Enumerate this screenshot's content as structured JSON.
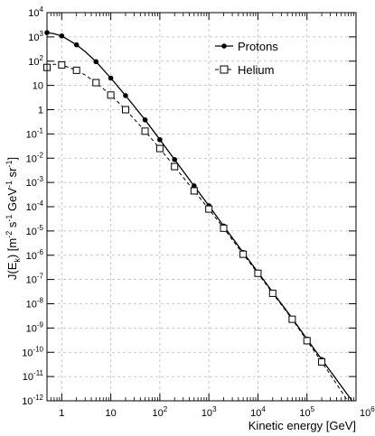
{
  "chart_data": {
    "type": "line",
    "x_scale": "log",
    "y_scale": "log",
    "xlim": [
      0.5,
      1000000
    ],
    "ylim": [
      1e-12,
      10000
    ],
    "grid": true,
    "legend_position": "top-right",
    "xlabel": "Kinetic energy [GeV]",
    "ylabel": "J(E_k) [m^-2 s^-1 GeV^-1 sr^-1]",
    "x_tick_labels": [
      {
        "base": "",
        "exp": "",
        "plain": "1",
        "value": 1
      },
      {
        "base": "",
        "exp": "",
        "plain": "10",
        "value": 10
      },
      {
        "base": "10",
        "exp": "2",
        "plain": "",
        "value": 100
      },
      {
        "base": "10",
        "exp": "3",
        "plain": "",
        "value": 1000
      },
      {
        "base": "10",
        "exp": "4",
        "plain": "",
        "value": 10000
      },
      {
        "base": "10",
        "exp": "5",
        "plain": "",
        "value": 100000
      },
      {
        "base": "10",
        "exp": "6",
        "plain": "",
        "value": 1000000
      }
    ],
    "y_tick_labels": [
      {
        "base": "10",
        "exp": "4",
        "plain": "",
        "value": 10000
      },
      {
        "base": "10",
        "exp": "3",
        "plain": "",
        "value": 1000
      },
      {
        "base": "10",
        "exp": "2",
        "plain": "",
        "value": 100
      },
      {
        "base": "",
        "exp": "",
        "plain": "10",
        "value": 10
      },
      {
        "base": "",
        "exp": "",
        "plain": "1",
        "value": 1
      },
      {
        "base": "10",
        "exp": "-1",
        "plain": "",
        "value": 0.1
      },
      {
        "base": "10",
        "exp": "-2",
        "plain": "",
        "value": 0.01
      },
      {
        "base": "10",
        "exp": "-3",
        "plain": "",
        "value": 0.001
      },
      {
        "base": "10",
        "exp": "-4",
        "plain": "",
        "value": 0.0001
      },
      {
        "base": "10",
        "exp": "-5",
        "plain": "",
        "value": 1e-05
      },
      {
        "base": "10",
        "exp": "-6",
        "plain": "",
        "value": 1e-06
      },
      {
        "base": "10",
        "exp": "-7",
        "plain": "",
        "value": 1e-07
      },
      {
        "base": "10",
        "exp": "-8",
        "plain": "",
        "value": 1e-08
      },
      {
        "base": "10",
        "exp": "-9",
        "plain": "",
        "value": 1e-09
      },
      {
        "base": "10",
        "exp": "-10",
        "plain": "",
        "value": 1e-10
      },
      {
        "base": "10",
        "exp": "-11",
        "plain": "",
        "value": 1e-11
      },
      {
        "base": "10",
        "exp": "-12",
        "plain": "",
        "value": 1e-12
      }
    ],
    "series": [
      {
        "name": "Protons",
        "marker": "filled-circle",
        "line_style": "solid",
        "x": [
          0.5,
          0.7,
          1,
          2,
          3,
          5,
          10,
          20,
          50,
          100,
          200,
          500,
          1000,
          2000,
          5000,
          10000,
          20000,
          50000,
          100000,
          200000,
          500000,
          1000000
        ],
        "y": [
          1500,
          1350,
          1100,
          470,
          250,
          95,
          20,
          3.8,
          0.38,
          0.058,
          0.0088,
          0.00072,
          0.00011,
          1.6e-05,
          1.3e-06,
          2e-07,
          3e-08,
          2.5e-09,
          3.5e-10,
          5e-11,
          4e-12,
          6e-13
        ],
        "points_x": [
          0.5,
          1,
          2,
          5,
          10,
          20,
          50,
          100,
          200,
          500,
          1000,
          2000,
          5000,
          10000,
          20000,
          50000,
          100000,
          200000
        ],
        "points_y": [
          1500,
          1100,
          470,
          95,
          20,
          3.8,
          0.38,
          0.058,
          0.0088,
          0.00072,
          0.00011,
          1.6e-05,
          1.3e-06,
          2e-07,
          3e-08,
          2.5e-09,
          3.5e-10,
          5e-11
        ]
      },
      {
        "name": "Helium",
        "marker": "open-square",
        "line_style": "dashed",
        "x": [
          0.5,
          0.7,
          1,
          2,
          3,
          5,
          10,
          20,
          50,
          100,
          200,
          500,
          1000,
          2000,
          5000,
          10000,
          20000,
          50000,
          100000,
          200000,
          500000,
          1000000
        ],
        "y": [
          55,
          75,
          70,
          42,
          27,
          13,
          4.0,
          1.0,
          0.13,
          0.025,
          0.0045,
          0.00045,
          8e-05,
          1.3e-05,
          1.1e-06,
          1.8e-07,
          2.7e-08,
          2.3e-09,
          3e-10,
          4e-11,
          2.5e-12,
          3e-13
        ],
        "points_x": [
          0.5,
          1,
          2,
          5,
          10,
          20,
          50,
          100,
          200,
          500,
          1000,
          2000,
          5000,
          10000,
          20000,
          50000,
          100000,
          200000
        ],
        "points_y": [
          55,
          70,
          42,
          13,
          4.0,
          1.0,
          0.13,
          0.025,
          0.0045,
          0.00045,
          8e-05,
          1.3e-05,
          1.1e-06,
          1.8e-07,
          2.7e-08,
          2.3e-09,
          3e-10,
          4e-11
        ]
      }
    ]
  }
}
